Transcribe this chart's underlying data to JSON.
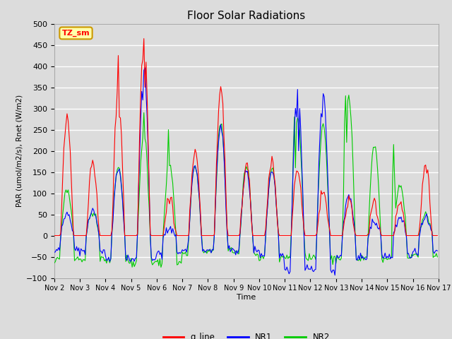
{
  "title": "Floor Solar Radiations",
  "xlabel": "Time",
  "ylabel": "PAR (umol/m2/s), Rnet (W/m2)",
  "ylim": [
    -100,
    500
  ],
  "xlim": [
    0,
    360
  ],
  "background_color": "#dcdcdc",
  "plot_bg_color": "#dcdcdc",
  "grid_color": "white",
  "colors": {
    "q_line": "#ff0000",
    "NR1": "#0000ff",
    "NR2": "#00cc00"
  },
  "annotation_text": "TZ_sm",
  "annotation_bg": "#ffffaa",
  "annotation_border": "#cc9900",
  "x_tick_labels": [
    "Nov 2",
    "Nov 3",
    "Nov 4",
    "Nov 5",
    "Nov 6",
    "Nov 7",
    "Nov 8",
    "Nov 9",
    "Nov 10",
    "Nov 11",
    "Nov 12",
    "Nov 13",
    "Nov 14",
    "Nov 15",
    "Nov 16",
    "Nov 17"
  ],
  "x_tick_positions": [
    0,
    24,
    48,
    72,
    96,
    120,
    144,
    168,
    192,
    216,
    240,
    264,
    288,
    312,
    336,
    360
  ]
}
